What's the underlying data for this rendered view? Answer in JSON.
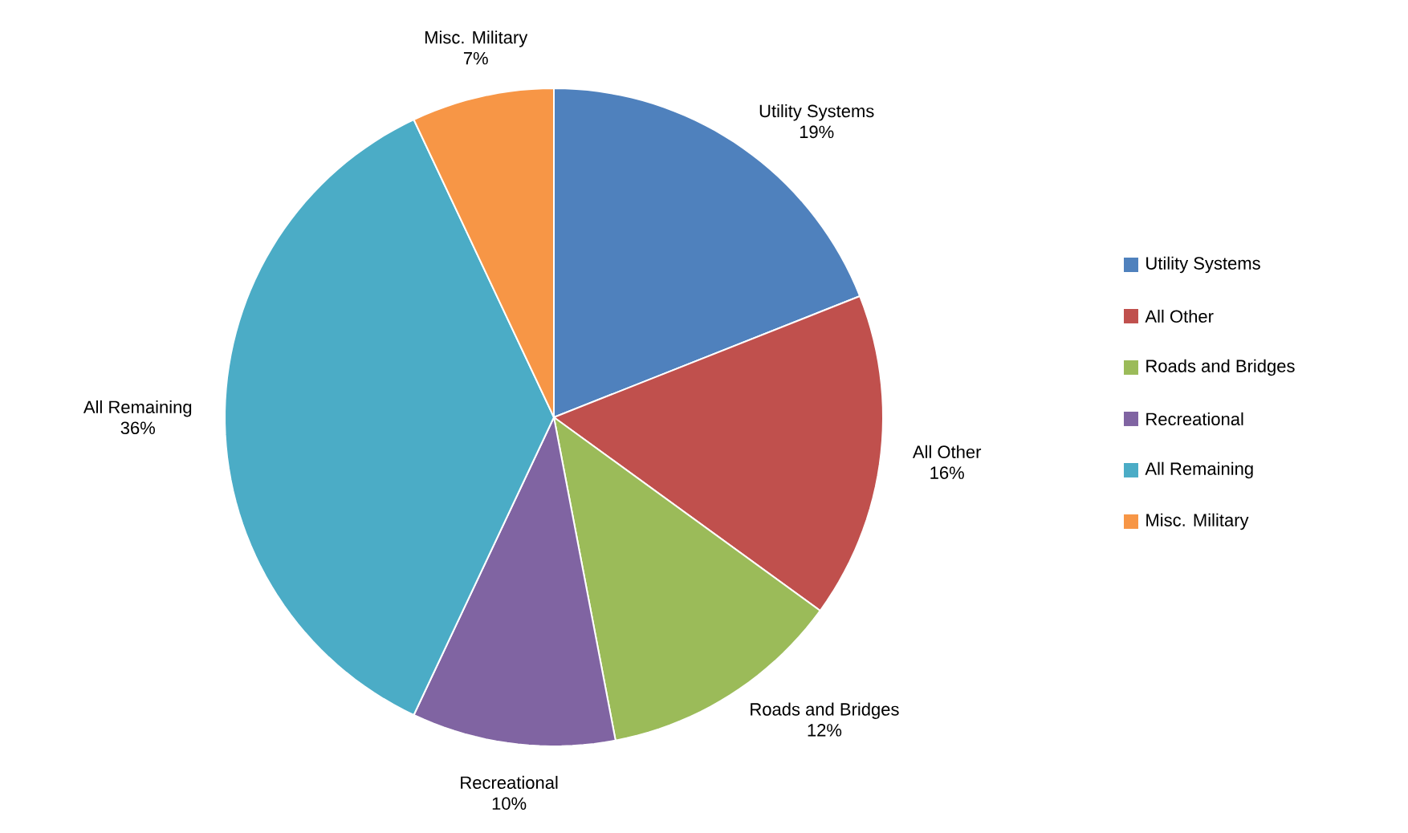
{
  "chart_data": {
    "type": "pie",
    "categories": [
      "Utility Systems",
      "All Other",
      "Roads and Bridges",
      "Recreational",
      "All Remaining",
      "Misc. Military"
    ],
    "values": [
      19,
      16,
      12,
      10,
      36,
      7
    ],
    "value_labels": [
      "19%",
      "16%",
      "12%",
      "10%",
      "36%",
      "7%"
    ],
    "colors": [
      "#4f81bd",
      "#c0504d",
      "#9bbb59",
      "#8064a2",
      "#4bacc6",
      "#f79646"
    ],
    "legend": "right"
  }
}
